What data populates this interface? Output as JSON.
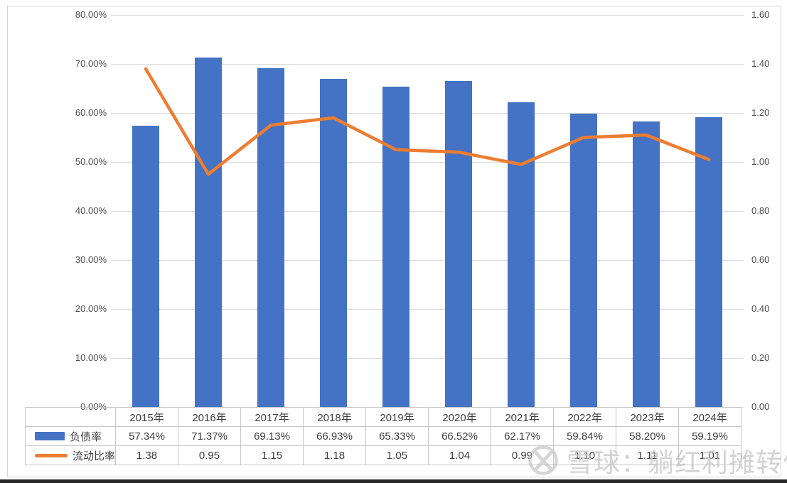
{
  "chart_data": {
    "type": "combo",
    "title": "",
    "categories": [
      "2015年",
      "2016年",
      "2017年",
      "2018年",
      "2019年",
      "2020年",
      "2021年",
      "2022年",
      "2023年",
      "2024年"
    ],
    "series": [
      {
        "name": "负债率",
        "chart_type": "bar",
        "color": "#4472C4",
        "axis": "left",
        "values": [
          57.34,
          71.37,
          69.13,
          66.93,
          65.33,
          66.52,
          62.17,
          59.84,
          58.2,
          59.19
        ],
        "labels": [
          "57.34%",
          "71.37%",
          "69.13%",
          "66.93%",
          "65.33%",
          "66.52%",
          "62.17%",
          "59.84%",
          "58.20%",
          "59.19%"
        ]
      },
      {
        "name": "流动比率",
        "chart_type": "line",
        "color": "#ED7D31",
        "axis": "right",
        "values": [
          1.38,
          0.95,
          1.15,
          1.18,
          1.05,
          1.04,
          0.99,
          1.1,
          1.11,
          1.01
        ],
        "labels": [
          "1.38",
          "0.95",
          "1.15",
          "1.18",
          "1.05",
          "1.04",
          "0.99",
          "1.10",
          "1.11",
          "1.01"
        ]
      }
    ],
    "left_axis": {
      "min": 0,
      "max": 80,
      "ticks": [
        "80.00%",
        "70.00%",
        "60.00%",
        "50.00%",
        "40.00%",
        "30.00%",
        "20.00%",
        "10.00%",
        "0.00%"
      ]
    },
    "right_axis": {
      "min": 0,
      "max": 1.6,
      "ticks": [
        "1.60",
        "1.40",
        "1.20",
        "1.00",
        "0.80",
        "0.60",
        "0.40",
        "0.20",
        "0.00"
      ]
    },
    "grid": true,
    "legend_position": "data-table-left"
  },
  "watermark": {
    "text": "雪球：躺红利摊转债",
    "logo": "xueqiu-circle-x-logo"
  }
}
